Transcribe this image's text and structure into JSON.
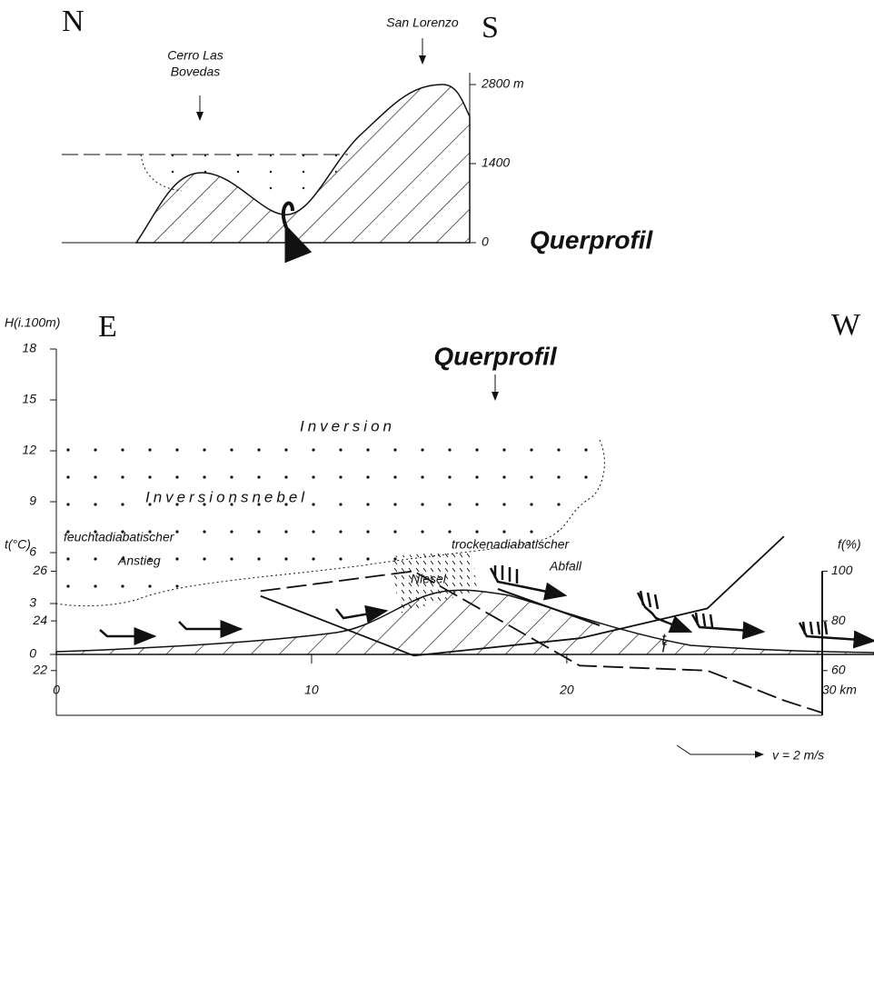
{
  "profile_ns": {
    "north": "N",
    "south": "S",
    "peak_1": [
      "Cerro Las",
      "Bovedas"
    ],
    "peak_2": "San Lorenzo",
    "ticks": [
      0,
      1400,
      {
        "value": 2800,
        "label": "2800 m"
      }
    ],
    "label": "Querprofil"
  },
  "section_ew": {
    "axis_label": "H(i.100m)",
    "east": "E",
    "west": "W",
    "marker": "Querprofil",
    "inversion": "Inversion",
    "fog": "Inversionsnebel",
    "drizzle": "Niesel",
    "ylim": [
      0,
      18
    ],
    "yticks": [
      0,
      3,
      6,
      9,
      12,
      15,
      18
    ],
    "xlim": [
      0,
      32
    ],
    "xticks": [
      0,
      10,
      20,
      {
        "value": 30,
        "label": "30 km"
      }
    ]
  },
  "chart_data": {
    "type": "line",
    "y_label": "t(°C)",
    "y2_label": "f(%)",
    "annotations": [
      "feuchtadiabatischer",
      "Anstieg",
      "trockenadiabatischer",
      "Abfall",
      "v = 2 m/s"
    ],
    "x": [
      8,
      14,
      20.5,
      25.5,
      28.5,
      30
    ],
    "xlim": [
      0,
      30
    ],
    "ylim": [
      20.2,
      28.1
    ],
    "yticks": [
      22,
      24,
      26
    ],
    "y2lim": [
      42,
      121
    ],
    "y2ticks": [
      60,
      80,
      100
    ],
    "series": [
      {
        "name": "t",
        "color": "#111111",
        "dashed": false,
        "values": [
          25.0,
          22.6,
          23.3,
          24.5,
          27.4,
          null
        ]
      },
      {
        "name": "f",
        "color": "#111111",
        "dashed": true,
        "axis": "y2",
        "values": [
          92,
          100,
          62,
          60,
          48,
          43
        ]
      }
    ]
  }
}
